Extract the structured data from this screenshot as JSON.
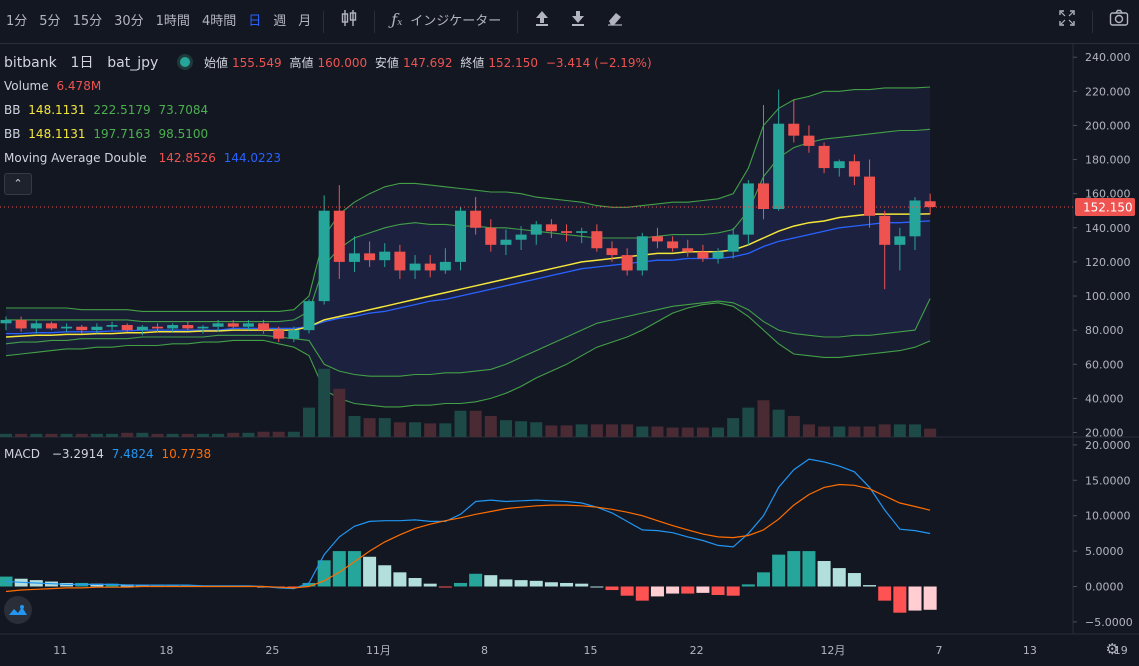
{
  "toolbar": {
    "intervals": [
      "1分",
      "5分",
      "15分",
      "30分",
      "1時間",
      "4時間",
      "日",
      "週",
      "月"
    ],
    "active_interval": "日",
    "indicators_label": "インジケーター"
  },
  "legend": {
    "exchange": "bitbank",
    "interval": "1日",
    "symbol": "bat_jpy",
    "open_label": "始値",
    "open": "155.549",
    "high_label": "高値",
    "high": "160.000",
    "low_label": "安値",
    "low": "147.692",
    "close_label": "終値",
    "close": "152.150",
    "change": "−3.414 (−2.19%)",
    "volume_label": "Volume",
    "volume": "6.478M",
    "bb1_label": "BB",
    "bb1_mid": "148.1131",
    "bb1_up": "222.5179",
    "bb1_low": "73.7084",
    "bb2_label": "BB",
    "bb2_mid": "148.1131",
    "bb2_up": "197.7163",
    "bb2_low": "98.5100",
    "ma_label": "Moving Average Double",
    "ma1": "142.8526",
    "ma2": "144.0223",
    "macd_label": "MACD",
    "macd_hist": "−3.2914",
    "macd": "7.4824",
    "macd_signal": "10.7738"
  },
  "colors": {
    "up": "#26a69a",
    "down": "#ef5350",
    "background": "#131722",
    "bb_fill": "#1e2340",
    "ma_fast": "#f5e63b",
    "ma_slow": "#2962ff",
    "macd_line": "#2196f3",
    "signal_line": "#ff6d00"
  },
  "chart_data": {
    "type": "candlestick",
    "x_tick_labels": [
      "11",
      "18",
      "25",
      "11月",
      "8",
      "15",
      "22",
      "12月",
      "7",
      "13",
      "19"
    ],
    "price_axis_ticks": [
      "240.000",
      "220.000",
      "200.000",
      "180.000",
      "160.000",
      "140.000",
      "120.000",
      "100.000",
      "80.000",
      "60.000",
      "40.000",
      "20.000"
    ],
    "macd_axis_ticks": [
      "20.0000",
      "15.0000",
      "10.0000",
      "5.0000",
      "0.0000",
      "−5.0000"
    ],
    "last_price_label": "152.150",
    "last_price": 152.15,
    "price_ylim": [
      14,
      246
    ],
    "macd_ylim": [
      -7.5,
      20.5
    ],
    "candles": [
      {
        "o": 84,
        "h": 88,
        "l": 80,
        "c": 86
      },
      {
        "o": 86,
        "h": 88,
        "l": 79,
        "c": 81
      },
      {
        "o": 81,
        "h": 86,
        "l": 78,
        "c": 84
      },
      {
        "o": 84,
        "h": 85,
        "l": 80,
        "c": 81
      },
      {
        "o": 81,
        "h": 84,
        "l": 79,
        "c": 82
      },
      {
        "o": 82,
        "h": 83,
        "l": 78,
        "c": 80
      },
      {
        "o": 80,
        "h": 84,
        "l": 78,
        "c": 82
      },
      {
        "o": 82,
        "h": 85,
        "l": 80,
        "c": 83
      },
      {
        "o": 83,
        "h": 84,
        "l": 79,
        "c": 80
      },
      {
        "o": 80,
        "h": 83,
        "l": 77,
        "c": 82
      },
      {
        "o": 82,
        "h": 84,
        "l": 79,
        "c": 81
      },
      {
        "o": 81,
        "h": 84,
        "l": 79,
        "c": 83
      },
      {
        "o": 83,
        "h": 85,
        "l": 80,
        "c": 81
      },
      {
        "o": 81,
        "h": 83,
        "l": 78,
        "c": 82
      },
      {
        "o": 82,
        "h": 86,
        "l": 79,
        "c": 84
      },
      {
        "o": 84,
        "h": 86,
        "l": 81,
        "c": 82
      },
      {
        "o": 82,
        "h": 86,
        "l": 80,
        "c": 84
      },
      {
        "o": 84,
        "h": 86,
        "l": 78,
        "c": 80
      },
      {
        "o": 80,
        "h": 82,
        "l": 73,
        "c": 75
      },
      {
        "o": 75,
        "h": 82,
        "l": 73,
        "c": 80
      },
      {
        "o": 80,
        "h": 98,
        "l": 78,
        "c": 97
      },
      {
        "o": 97,
        "h": 159,
        "l": 95,
        "c": 150
      },
      {
        "o": 150,
        "h": 165,
        "l": 110,
        "c": 120
      },
      {
        "o": 120,
        "h": 135,
        "l": 114,
        "c": 125
      },
      {
        "o": 125,
        "h": 132,
        "l": 117,
        "c": 121
      },
      {
        "o": 121,
        "h": 131,
        "l": 117,
        "c": 126
      },
      {
        "o": 126,
        "h": 130,
        "l": 110,
        "c": 115
      },
      {
        "o": 115,
        "h": 124,
        "l": 110,
        "c": 119
      },
      {
        "o": 119,
        "h": 124,
        "l": 111,
        "c": 115
      },
      {
        "o": 115,
        "h": 128,
        "l": 113,
        "c": 120
      },
      {
        "o": 120,
        "h": 152,
        "l": 115,
        "c": 150
      },
      {
        "o": 150,
        "h": 158,
        "l": 136,
        "c": 140
      },
      {
        "o": 140,
        "h": 145,
        "l": 126,
        "c": 130
      },
      {
        "o": 130,
        "h": 139,
        "l": 124,
        "c": 133
      },
      {
        "o": 133,
        "h": 141,
        "l": 127,
        "c": 136
      },
      {
        "o": 136,
        "h": 144,
        "l": 130,
        "c": 142
      },
      {
        "o": 142,
        "h": 145,
        "l": 134,
        "c": 138
      },
      {
        "o": 138,
        "h": 142,
        "l": 132,
        "c": 137
      },
      {
        "o": 137,
        "h": 140,
        "l": 131,
        "c": 138
      },
      {
        "o": 138,
        "h": 142,
        "l": 126,
        "c": 128
      },
      {
        "o": 128,
        "h": 132,
        "l": 120,
        "c": 124
      },
      {
        "o": 124,
        "h": 128,
        "l": 112,
        "c": 115
      },
      {
        "o": 115,
        "h": 137,
        "l": 112,
        "c": 135
      },
      {
        "o": 135,
        "h": 140,
        "l": 128,
        "c": 132
      },
      {
        "o": 132,
        "h": 135,
        "l": 126,
        "c": 128
      },
      {
        "o": 128,
        "h": 133,
        "l": 123,
        "c": 126
      },
      {
        "o": 126,
        "h": 130,
        "l": 120,
        "c": 122
      },
      {
        "o": 122,
        "h": 128,
        "l": 119,
        "c": 126
      },
      {
        "o": 126,
        "h": 140,
        "l": 122,
        "c": 136
      },
      {
        "o": 136,
        "h": 168,
        "l": 130,
        "c": 166
      },
      {
        "o": 166,
        "h": 212,
        "l": 145,
        "c": 151
      },
      {
        "o": 151,
        "h": 221,
        "l": 150,
        "c": 201
      },
      {
        "o": 201,
        "h": 215,
        "l": 190,
        "c": 194
      },
      {
        "o": 194,
        "h": 200,
        "l": 184,
        "c": 188
      },
      {
        "o": 188,
        "h": 190,
        "l": 172,
        "c": 175
      },
      {
        "o": 175,
        "h": 180,
        "l": 170,
        "c": 179
      },
      {
        "o": 179,
        "h": 183,
        "l": 165,
        "c": 170
      },
      {
        "o": 170,
        "h": 180,
        "l": 140,
        "c": 147
      },
      {
        "o": 147,
        "h": 150,
        "l": 104,
        "c": 130
      },
      {
        "o": 130,
        "h": 140,
        "l": 115,
        "c": 135
      },
      {
        "o": 135,
        "h": 158,
        "l": 127,
        "c": 156
      },
      {
        "o": 155.549,
        "h": 160,
        "l": 147.692,
        "c": 152.15
      }
    ],
    "volume_share": [
      0.03,
      0.03,
      0.03,
      0.03,
      0.03,
      0.03,
      0.03,
      0.03,
      0.04,
      0.04,
      0.03,
      0.03,
      0.03,
      0.03,
      0.03,
      0.04,
      0.04,
      0.05,
      0.05,
      0.05,
      0.28,
      0.65,
      0.46,
      0.2,
      0.18,
      0.18,
      0.14,
      0.14,
      0.13,
      0.13,
      0.25,
      0.25,
      0.2,
      0.16,
      0.15,
      0.14,
      0.11,
      0.11,
      0.12,
      0.12,
      0.12,
      0.12,
      0.1,
      0.1,
      0.09,
      0.09,
      0.09,
      0.09,
      0.18,
      0.28,
      0.35,
      0.26,
      0.2,
      0.12,
      0.1,
      0.1,
      0.1,
      0.1,
      0.12,
      0.12,
      0.12,
      0.08
    ],
    "bb_outer_upper": [
      93,
      93,
      93,
      93,
      93,
      92,
      92,
      92,
      92,
      91,
      91,
      91,
      91,
      91,
      91,
      91,
      91,
      91,
      91,
      92,
      100,
      135,
      148,
      155,
      160,
      164,
      166,
      166,
      165,
      164,
      163,
      162,
      161,
      161,
      160,
      158,
      157,
      156,
      155,
      153,
      152,
      152,
      153,
      154,
      155,
      155,
      156,
      157,
      160,
      175,
      200,
      210,
      215,
      217,
      220,
      220,
      221,
      221,
      222,
      222,
      222,
      222.52
    ],
    "bb_outer_lower": [
      65,
      66,
      67,
      68,
      69,
      69,
      70,
      70,
      71,
      71,
      71,
      72,
      72,
      73,
      73,
      74,
      74,
      74,
      72,
      70,
      65,
      45,
      40,
      37,
      36,
      35,
      35,
      36,
      36,
      37,
      37,
      38,
      40,
      43,
      47,
      52,
      56,
      60,
      65,
      70,
      73,
      76,
      80,
      85,
      90,
      93,
      95,
      96,
      94,
      88,
      80,
      72,
      66,
      65,
      64,
      64,
      65,
      66,
      67,
      68,
      70,
      73.71
    ],
    "bb_inner_upper": [
      86,
      86,
      86,
      86,
      86,
      86,
      86,
      86,
      86,
      85,
      85,
      85,
      85,
      85,
      85,
      85,
      85,
      85,
      85,
      86,
      91,
      118,
      128,
      134,
      137,
      140,
      142,
      143,
      142,
      142,
      141,
      141,
      140,
      140,
      139,
      138,
      137,
      136,
      135,
      134,
      134,
      134,
      134,
      135,
      136,
      136,
      136,
      137,
      139,
      150,
      170,
      181,
      187,
      190,
      192,
      193,
      194,
      195,
      196,
      197,
      197,
      197.72
    ],
    "bb_inner_lower": [
      72,
      73,
      73,
      74,
      74,
      75,
      75,
      75,
      75,
      76,
      76,
      76,
      76,
      76,
      77,
      77,
      77,
      77,
      76,
      75,
      74,
      60,
      56,
      54,
      53,
      53,
      53,
      54,
      54,
      55,
      55,
      56,
      57,
      60,
      64,
      68,
      72,
      76,
      80,
      84,
      86,
      88,
      90,
      92,
      94,
      95,
      96,
      97,
      96,
      92,
      85,
      80,
      78,
      77,
      76,
      76,
      77,
      77,
      78,
      79,
      80,
      98.51
    ],
    "ma_fast": [
      76,
      76.5,
      77,
      77,
      77.5,
      77.5,
      78,
      78,
      78.5,
      78.5,
      79,
      79,
      79,
      79.5,
      79.5,
      80,
      80,
      80,
      80,
      80,
      82,
      86,
      88,
      90,
      92,
      94,
      96,
      98,
      100,
      102,
      104,
      106,
      108,
      110,
      112,
      114,
      116,
      118,
      120,
      121,
      122,
      123,
      124,
      125,
      125,
      126,
      126,
      126,
      127,
      130,
      134,
      138,
      141,
      143,
      144,
      146,
      147,
      148,
      148,
      148,
      148,
      148.11
    ],
    "ma_slow": [
      78,
      78,
      78.5,
      78.5,
      79,
      79,
      79,
      79.5,
      79.5,
      80,
      80,
      80,
      80,
      80,
      80,
      81,
      81,
      81,
      81,
      81,
      82,
      85,
      87,
      88,
      90,
      91,
      93,
      95,
      97,
      98,
      100,
      102,
      104,
      106,
      108,
      110,
      112,
      114,
      116,
      117,
      118,
      119,
      120,
      121,
      121,
      122,
      122,
      122,
      123,
      125,
      129,
      132,
      134,
      136,
      138,
      140,
      141,
      142,
      143,
      143,
      143.5,
      144.02
    ],
    "macd_line": [
      0.7,
      0.6,
      0.5,
      0.4,
      0.3,
      0.3,
      0.3,
      0.3,
      0.2,
      0.2,
      0.2,
      0.2,
      0.2,
      0.1,
      0.1,
      0.1,
      0.1,
      0.0,
      -0.2,
      -0.3,
      0.5,
      4.5,
      7.0,
      8.5,
      9.2,
      9.3,
      9.3,
      9.4,
      9.2,
      9.2,
      10.2,
      12.0,
      12.2,
      12.0,
      12.1,
      12.2,
      12.1,
      12.0,
      11.8,
      11.2,
      10.4,
      9.2,
      8.0,
      7.9,
      7.6,
      7.0,
      6.5,
      5.8,
      5.6,
      7.5,
      10.0,
      14.0,
      16.5,
      18.0,
      17.6,
      17.0,
      16.2,
      14.0,
      10.8,
      8.1,
      7.9,
      7.48
    ],
    "signal_line": [
      -0.7,
      -0.5,
      -0.4,
      -0.3,
      -0.2,
      -0.2,
      -0.1,
      -0.1,
      -0.1,
      0.0,
      0.0,
      0.0,
      0.0,
      0.0,
      0.0,
      0.0,
      0.0,
      0.0,
      -0.1,
      -0.2,
      0.0,
      0.8,
      2.0,
      3.5,
      5.0,
      6.3,
      7.3,
      8.2,
      8.8,
      9.3,
      9.7,
      10.2,
      10.6,
      11.0,
      11.2,
      11.4,
      11.5,
      11.5,
      11.4,
      11.2,
      10.9,
      10.5,
      10.0,
      9.3,
      8.6,
      8.0,
      7.4,
      7.0,
      6.9,
      7.2,
      8.0,
      9.5,
      11.5,
      13.0,
      14.0,
      14.4,
      14.3,
      13.8,
      12.8,
      11.8,
      11.3,
      10.77
    ],
    "macd_histogram": [
      1.4,
      1.1,
      0.9,
      0.7,
      0.5,
      0.5,
      0.4,
      0.4,
      0.3,
      0.2,
      0.2,
      0.2,
      0.2,
      0.1,
      0.1,
      0.1,
      0.1,
      0.0,
      -0.1,
      -0.1,
      0.5,
      3.7,
      5.0,
      5.0,
      4.2,
      3.0,
      2.0,
      1.2,
      0.4,
      -0.1,
      0.5,
      1.8,
      1.6,
      1.0,
      0.9,
      0.8,
      0.6,
      0.5,
      0.4,
      0.0,
      -0.5,
      -1.3,
      -2.0,
      -1.4,
      -1.0,
      -1.0,
      -0.9,
      -1.2,
      -1.3,
      0.3,
      2.0,
      4.5,
      5.0,
      5.0,
      3.6,
      2.6,
      1.9,
      0.2,
      -2.0,
      -3.7,
      -3.4,
      -3.29
    ]
  }
}
